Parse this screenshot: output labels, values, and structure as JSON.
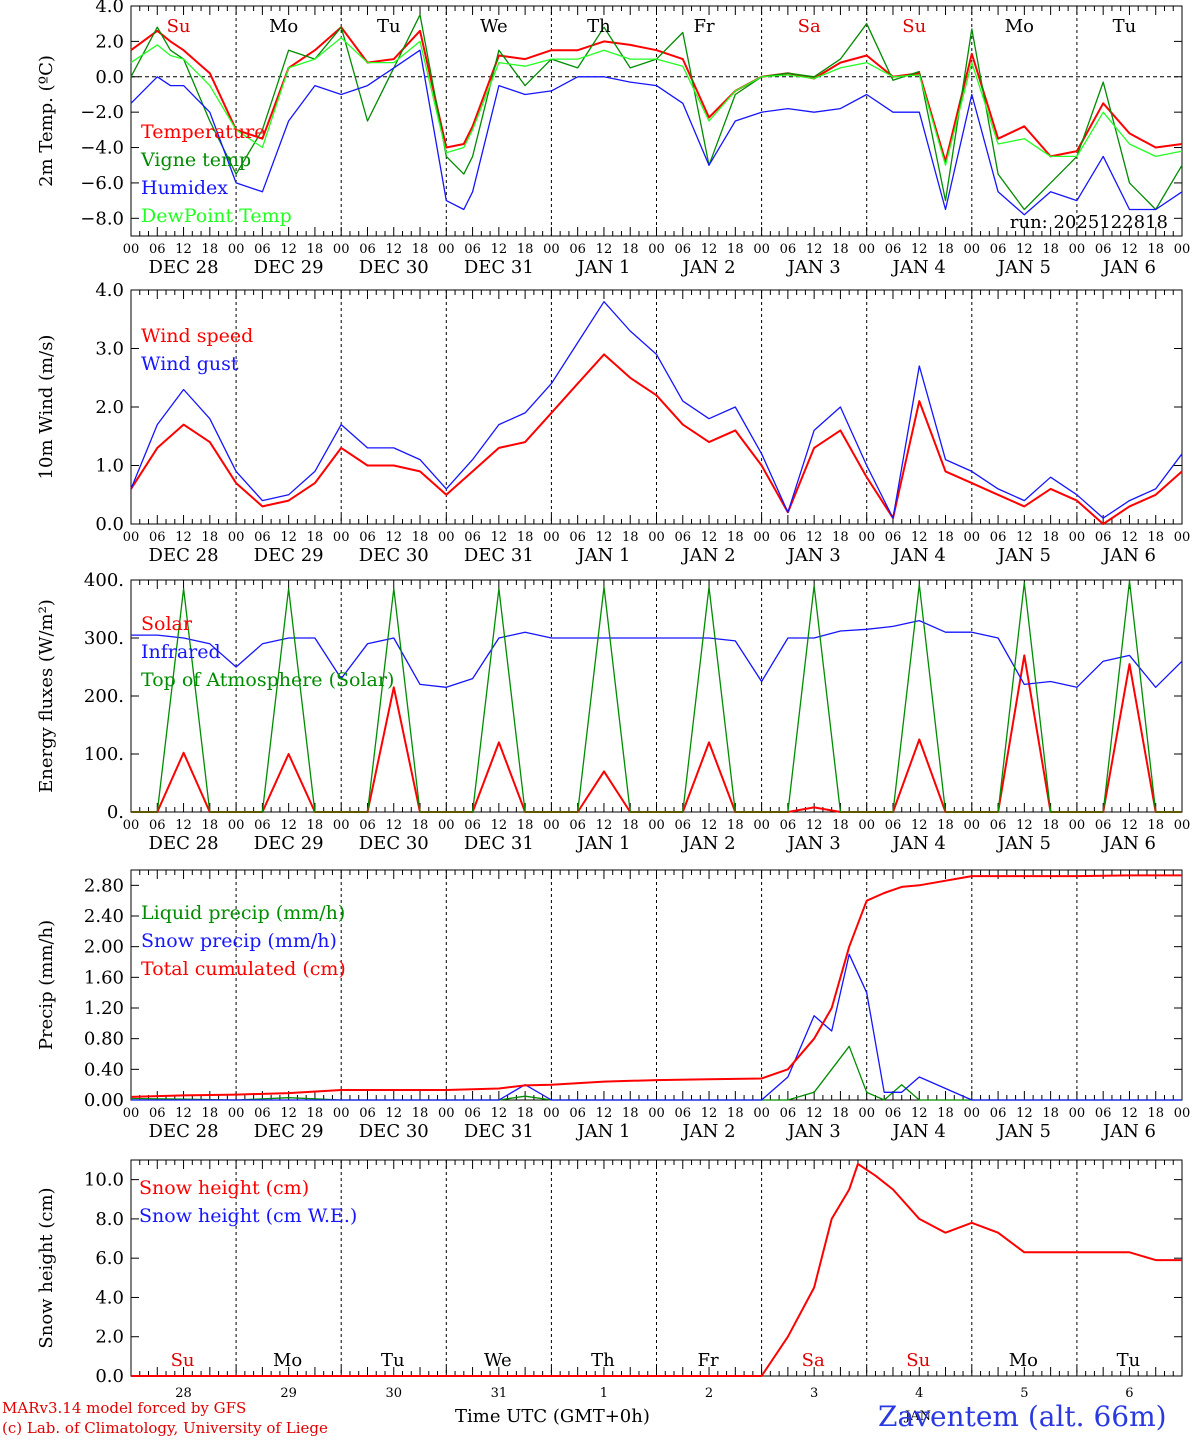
{
  "days": [
    "DEC 28",
    "DEC 29",
    "DEC 30",
    "DEC 31",
    "JAN  1",
    "JAN  2",
    "JAN  3",
    "JAN  4",
    "JAN  5",
    "JAN  6"
  ],
  "weekdays": [
    "Su",
    "Mo",
    "Tu",
    "We",
    "Th",
    "Fr",
    "Sa",
    "Su",
    "Mo",
    "Tu"
  ],
  "weekday_colors": [
    "#e00000",
    "#000000",
    "#000000",
    "#000000",
    "#000000",
    "#000000",
    "#e00000",
    "#e00000",
    "#000000",
    "#000000"
  ],
  "hour_labels": [
    "00",
    "06",
    "12",
    "18"
  ],
  "hour_end_label": "00",
  "bottom_day_numbers": [
    "28",
    "29",
    "30",
    "31",
    "1",
    "2",
    "3",
    "4",
    "5",
    "6"
  ],
  "bottom_month_label": "JAN",
  "x_title": "Time UTC (GMT+0h)",
  "station": "Zaventem (alt. 66m)",
  "footer": [
    "MARv3.14 model forced by GFS",
    "(c) Lab. of Climatology, University of Liege"
  ],
  "run_label": "run: 2025122818",
  "colors": {
    "red": "#ff0000",
    "green": "#008c00",
    "blue": "#1515ff",
    "lightgreen": "#22ff22"
  },
  "chart_data": [
    {
      "type": "line",
      "ylabel": "2m Temp. (ºC)",
      "ylim": [
        -9,
        4
      ],
      "yticks": [
        -8,
        -6,
        -4,
        -2,
        0,
        2,
        4
      ],
      "ytick_labels": [
        "−8.0",
        "−6.0",
        "−4.0",
        "−2.0",
        "0.0",
        "2.0",
        "4.0"
      ],
      "zero_line": true,
      "x_hours": [
        0,
        6,
        9,
        12,
        18,
        24,
        30,
        36,
        42,
        48,
        54,
        60,
        66,
        72,
        76,
        78,
        84,
        90,
        96,
        102,
        108,
        114,
        120,
        126,
        132,
        138,
        144,
        150,
        156,
        162,
        168,
        174,
        180,
        186,
        192,
        198,
        204,
        210,
        216,
        222,
        228,
        234,
        240
      ],
      "series": [
        {
          "name": "Temperature",
          "color": "red",
          "values": [
            1.5,
            2.6,
            2.0,
            1.5,
            0.2,
            -3.0,
            -3.5,
            0.5,
            1.5,
            2.8,
            0.8,
            1.0,
            2.6,
            -4.0,
            -3.8,
            -2.8,
            1.2,
            1.0,
            1.5,
            1.5,
            2.0,
            1.8,
            1.5,
            1.0,
            -2.3,
            -0.8,
            0.0,
            0.2,
            -0.1,
            0.8,
            1.2,
            0.0,
            0.2,
            -4.8,
            1.3,
            -3.5,
            -2.8,
            -4.5,
            -4.2,
            -1.5,
            -3.2,
            -4.0,
            -3.8
          ]
        },
        {
          "name": "Vigne temp",
          "color": "green",
          "values": [
            0.0,
            2.8,
            1.5,
            1.0,
            -2.5,
            -5.5,
            -3.0,
            1.5,
            1.0,
            2.8,
            -2.5,
            0.5,
            3.5,
            -4.5,
            -5.5,
            -4.5,
            1.5,
            -0.5,
            1.0,
            0.5,
            2.8,
            0.5,
            1.0,
            2.5,
            -5.0,
            -1.0,
            0.0,
            0.2,
            0.0,
            1.0,
            3.0,
            -0.2,
            0.3,
            -7.0,
            2.7,
            -5.5,
            -7.5,
            -6.0,
            -4.5,
            -0.3,
            -6.0,
            -7.5,
            -5.0
          ]
        },
        {
          "name": "Humidex",
          "color": "blue",
          "values": [
            -1.5,
            0.0,
            -0.5,
            -0.5,
            -2.0,
            -6.0,
            -6.5,
            -2.5,
            -0.5,
            -1.0,
            -0.5,
            0.5,
            1.5,
            -7.0,
            -7.5,
            -6.5,
            -0.5,
            -1.0,
            -0.8,
            0.0,
            0.0,
            -0.3,
            -0.5,
            -1.5,
            -5.0,
            -2.5,
            -2.0,
            -1.8,
            -2.0,
            -1.8,
            -1.0,
            -2.0,
            -2.0,
            -7.5,
            -1.0,
            -6.5,
            -7.8,
            -6.5,
            -7.0,
            -4.5,
            -7.5,
            -7.5,
            -6.5
          ]
        },
        {
          "name": "DewPoint Temp",
          "color": "lightgreen",
          "values": [
            0.8,
            1.8,
            1.2,
            1.0,
            -0.5,
            -3.0,
            -4.0,
            0.5,
            1.0,
            2.2,
            0.8,
            0.8,
            2.0,
            -4.3,
            -4.0,
            -3.0,
            0.8,
            0.6,
            1.0,
            1.0,
            1.5,
            1.0,
            1.0,
            0.6,
            -2.5,
            -0.8,
            0.0,
            0.1,
            -0.1,
            0.5,
            0.8,
            0.0,
            0.1,
            -5.0,
            0.8,
            -3.8,
            -3.5,
            -4.5,
            -4.5,
            -2.0,
            -3.8,
            -4.5,
            -4.2
          ]
        }
      ]
    },
    {
      "type": "line",
      "ylabel": "10m Wind (m/s)",
      "ylim": [
        0,
        4
      ],
      "yticks": [
        0,
        1,
        2,
        3,
        4
      ],
      "ytick_labels": [
        "0.0",
        "1.0",
        "2.0",
        "3.0",
        "4.0"
      ],
      "x_hours": [
        0,
        6,
        12,
        18,
        24,
        30,
        36,
        42,
        48,
        54,
        60,
        66,
        72,
        78,
        84,
        90,
        96,
        102,
        108,
        114,
        120,
        126,
        132,
        138,
        144,
        150,
        156,
        162,
        168,
        174,
        180,
        186,
        192,
        198,
        204,
        210,
        216,
        222,
        228,
        234,
        240
      ],
      "series": [
        {
          "name": "Wind speed",
          "color": "red",
          "values": [
            0.6,
            1.3,
            1.7,
            1.4,
            0.7,
            0.3,
            0.4,
            0.7,
            1.3,
            1.0,
            1.0,
            0.9,
            0.5,
            0.9,
            1.3,
            1.4,
            1.9,
            2.4,
            2.9,
            2.5,
            2.2,
            1.7,
            1.4,
            1.6,
            1.0,
            0.2,
            1.3,
            1.6,
            0.8,
            0.1,
            2.1,
            0.9,
            0.7,
            0.5,
            0.3,
            0.6,
            0.4,
            0.0,
            0.3,
            0.5,
            0.9
          ]
        },
        {
          "name": "Wind gust",
          "color": "blue",
          "values": [
            0.6,
            1.7,
            2.3,
            1.8,
            0.9,
            0.4,
            0.5,
            0.9,
            1.7,
            1.3,
            1.3,
            1.1,
            0.6,
            1.1,
            1.7,
            1.9,
            2.4,
            3.1,
            3.8,
            3.3,
            2.9,
            2.1,
            1.8,
            2.0,
            1.2,
            0.2,
            1.6,
            2.0,
            1.0,
            0.1,
            2.7,
            1.1,
            0.9,
            0.6,
            0.4,
            0.8,
            0.5,
            0.1,
            0.4,
            0.6,
            1.2
          ]
        }
      ]
    },
    {
      "type": "line",
      "ylabel": "Energy fluxes (W/m²)",
      "ylim": [
        0,
        400
      ],
      "yticks": [
        0,
        100,
        200,
        300,
        400
      ],
      "ytick_labels": [
        "0.",
        "100.",
        "200.",
        "300.",
        "400."
      ],
      "x_hours": [
        0,
        6,
        12,
        18,
        24,
        30,
        36,
        42,
        48,
        54,
        60,
        66,
        72,
        78,
        84,
        90,
        96,
        102,
        108,
        114,
        120,
        126,
        132,
        138,
        144,
        150,
        156,
        162,
        168,
        174,
        180,
        186,
        192,
        198,
        204,
        210,
        216,
        222,
        228,
        234,
        240
      ],
      "series": [
        {
          "name": "Solar",
          "color": "red",
          "values": [
            0,
            0,
            102,
            0,
            0,
            0,
            100,
            0,
            0,
            0,
            215,
            0,
            0,
            0,
            120,
            0,
            0,
            0,
            70,
            0,
            0,
            0,
            120,
            0,
            0,
            0,
            8,
            0,
            0,
            0,
            125,
            0,
            0,
            0,
            270,
            0,
            0,
            0,
            255,
            0,
            0
          ]
        },
        {
          "name": "Infrared",
          "color": "blue",
          "values": [
            305,
            305,
            300,
            290,
            250,
            290,
            300,
            300,
            230,
            290,
            300,
            220,
            215,
            230,
            300,
            310,
            300,
            300,
            300,
            300,
            300,
            300,
            300,
            295,
            225,
            300,
            300,
            312,
            315,
            320,
            330,
            310,
            310,
            300,
            220,
            225,
            215,
            260,
            270,
            215,
            260
          ]
        },
        {
          "name": "Top of Atmosphere (Solar)",
          "color": "green",
          "values": [
            0,
            0,
            385,
            0,
            0,
            0,
            385,
            0,
            0,
            0,
            385,
            0,
            0,
            0,
            385,
            0,
            0,
            0,
            388,
            0,
            0,
            0,
            388,
            0,
            0,
            0,
            390,
            0,
            0,
            0,
            392,
            0,
            0,
            0,
            395,
            0,
            0,
            0,
            398,
            0,
            0
          ]
        }
      ]
    },
    {
      "type": "line",
      "ylabel": "Precip (mm/h)",
      "ylim": [
        0,
        3.0
      ],
      "yticks": [
        0,
        0.4,
        0.8,
        1.2,
        1.6,
        2.0,
        2.4,
        2.8
      ],
      "ytick_labels": [
        "0.00",
        "0.40",
        "0.80",
        "1.20",
        "1.60",
        "2.00",
        "2.40",
        "2.80"
      ],
      "x_hours": [
        0,
        12,
        24,
        36,
        48,
        60,
        72,
        84,
        90,
        96,
        108,
        120,
        132,
        144,
        150,
        156,
        160,
        164,
        168,
        172,
        176,
        180,
        192,
        198,
        204,
        216,
        228,
        240
      ],
      "series": [
        {
          "name": "Liquid precip (mm/h)",
          "color": "green",
          "values": [
            0.02,
            0.01,
            0.0,
            0.03,
            0.0,
            0.0,
            0.0,
            0.0,
            0.05,
            0.0,
            0.0,
            0.0,
            0.0,
            0.0,
            0.0,
            0.1,
            0.4,
            0.7,
            0.1,
            0.0,
            0.2,
            0.0,
            0.0,
            0.0,
            0.0,
            0.0,
            0.0,
            0.0
          ]
        },
        {
          "name": "Snow precip (mm/h)",
          "color": "blue",
          "values": [
            0.0,
            0.0,
            0.0,
            0.0,
            0.0,
            0.0,
            0.0,
            0.0,
            0.2,
            0.0,
            0.0,
            0.0,
            0.0,
            0.0,
            0.3,
            1.1,
            0.9,
            1.9,
            1.4,
            0.1,
            0.1,
            0.3,
            0.0,
            0.0,
            0.0,
            0.0,
            0.0,
            0.0
          ]
        },
        {
          "name": "Total cumulated (cm)",
          "color": "red",
          "values": [
            0.04,
            0.06,
            0.07,
            0.09,
            0.13,
            0.13,
            0.13,
            0.15,
            0.19,
            0.2,
            0.24,
            0.26,
            0.27,
            0.28,
            0.4,
            0.8,
            1.2,
            2.0,
            2.6,
            2.7,
            2.78,
            2.8,
            2.92,
            2.92,
            2.92,
            2.92,
            2.93,
            2.93
          ]
        }
      ]
    },
    {
      "type": "line",
      "ylabel": "Snow height (cm)",
      "ylim": [
        0,
        11
      ],
      "yticks": [
        0,
        2,
        4,
        6,
        8,
        10
      ],
      "ytick_labels": [
        "0.0",
        "2.0",
        "4.0",
        "6.0",
        "8.0",
        "10.0"
      ],
      "x_hours": [
        0,
        24,
        48,
        72,
        96,
        120,
        144,
        150,
        156,
        160,
        164,
        166,
        170,
        174,
        180,
        186,
        192,
        198,
        204,
        216,
        228,
        234,
        240
      ],
      "series": [
        {
          "name": "Snow height (cm)",
          "color": "red",
          "values": [
            0,
            0,
            0,
            0,
            0,
            0,
            0,
            2.0,
            4.5,
            8.0,
            9.5,
            10.8,
            10.2,
            9.5,
            8.0,
            7.3,
            7.8,
            7.3,
            6.3,
            6.3,
            6.3,
            5.9,
            5.9
          ]
        },
        {
          "name": "Snow height (cm W.E.)",
          "color": "blue",
          "values": []
        }
      ]
    }
  ]
}
